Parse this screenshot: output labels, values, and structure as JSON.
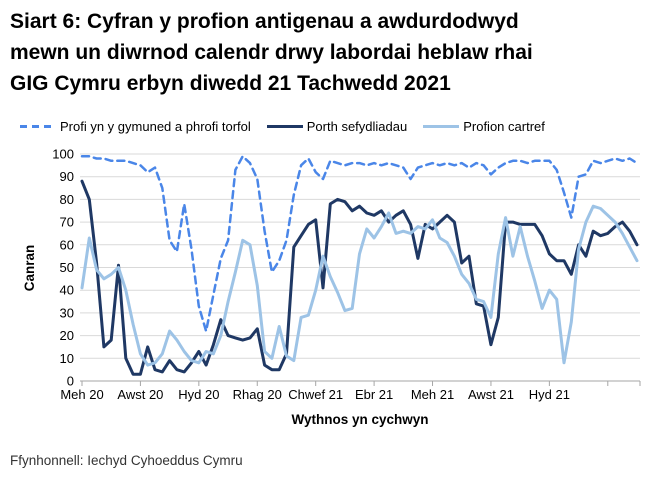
{
  "title": {
    "text": "Siart 6: Cyfran y profion antigenau a awdurdodwyd mewn un diwrnod calendr drwy labordai heblaw rhai GIG Cymru erbyn diwedd 21 Tachwedd 2021",
    "lines": [
      "Siart 6: Cyfran y profion antigenau a awdurdodwyd",
      "mewn un diwrnod calendr drwy labordai heblaw rhai",
      "GIG Cymru erbyn diwedd 21 Tachwedd 2021"
    ]
  },
  "source": "Ffynhonnell: Iechyd Cyhoeddus Cymru",
  "chart_data": {
    "type": "line",
    "title": "Siart 6: Cyfran y profion antigenau a awdurdodwyd mewn un diwrnod calendr drwy labordai heblaw rhai GIG Cymru erbyn diwedd 21 Tachwedd 2021",
    "xlabel": "Wythnos yn cychwyn",
    "ylabel": "Canran",
    "ylim": [
      0,
      100
    ],
    "y_ticks": [
      0,
      10,
      20,
      30,
      40,
      50,
      60,
      70,
      80,
      90,
      100
    ],
    "x_tick_labels": [
      "Meh 20",
      "Awst 20",
      "Hyd 20",
      "Rhag 20",
      "Chwef 21",
      "Ebr 21",
      "Meh 21",
      "Awst 21",
      "Hyd 21"
    ],
    "x_tick_every": 8,
    "grid": "horizontal",
    "legend_position": "top",
    "grid_color": "#d9d9d9",
    "axis_color": "#a6a6a6",
    "series": [
      {
        "name": "Profi yn y gymuned a phrofi torfol",
        "style": "dashed",
        "color": "#4a86e8",
        "values": [
          99,
          99,
          98,
          98,
          97,
          97,
          97,
          96,
          95,
          92,
          94,
          85,
          62,
          57,
          78,
          58,
          33,
          22,
          38,
          54,
          62,
          93,
          99,
          96,
          89,
          66,
          48,
          53,
          62,
          82,
          95,
          98,
          92,
          89,
          97,
          96,
          95,
          96,
          96,
          95,
          96,
          95,
          96,
          95,
          94,
          89,
          94,
          95,
          96,
          95,
          96,
          95,
          96,
          94,
          96,
          95,
          91,
          94,
          96,
          97,
          97,
          96,
          97,
          97,
          97,
          93,
          83,
          72,
          90,
          91,
          97,
          96,
          97,
          98,
          97,
          98,
          96
        ]
      },
      {
        "name": "Porth sefydliadau",
        "style": "solid",
        "color": "#1f3864",
        "values": [
          88,
          80,
          52,
          15,
          18,
          51,
          10,
          3,
          3,
          15,
          5,
          4,
          9,
          5,
          4,
          8,
          13,
          7,
          16,
          27,
          20,
          19,
          18,
          19,
          23,
          7,
          5,
          5,
          12,
          59,
          64,
          69,
          71,
          41,
          78,
          80,
          79,
          75,
          77,
          74,
          73,
          75,
          70,
          73,
          75,
          69,
          54,
          69,
          67,
          70,
          73,
          70,
          52,
          55,
          34,
          33,
          16,
          28,
          70,
          70,
          69,
          69,
          69,
          64,
          56,
          53,
          53,
          47,
          60,
          55,
          66,
          64,
          65,
          68,
          70,
          66,
          60
        ]
      },
      {
        "name": "Profion cartref",
        "style": "solid",
        "color": "#9dc3e6",
        "values": [
          41,
          63,
          49,
          45,
          47,
          50,
          40,
          25,
          12,
          7,
          8,
          12,
          22,
          18,
          13,
          9,
          8,
          13,
          12,
          20,
          35,
          48,
          62,
          60,
          42,
          13,
          10,
          24,
          11,
          9,
          28,
          29,
          40,
          55,
          46,
          39,
          31,
          32,
          56,
          67,
          63,
          68,
          74,
          65,
          66,
          65,
          68,
          67,
          71,
          63,
          61,
          55,
          47,
          43,
          36,
          35,
          28,
          56,
          72,
          55,
          68,
          55,
          44,
          32,
          40,
          36,
          8,
          26,
          58,
          70,
          77,
          76,
          73,
          70,
          65,
          59,
          53
        ]
      }
    ]
  }
}
